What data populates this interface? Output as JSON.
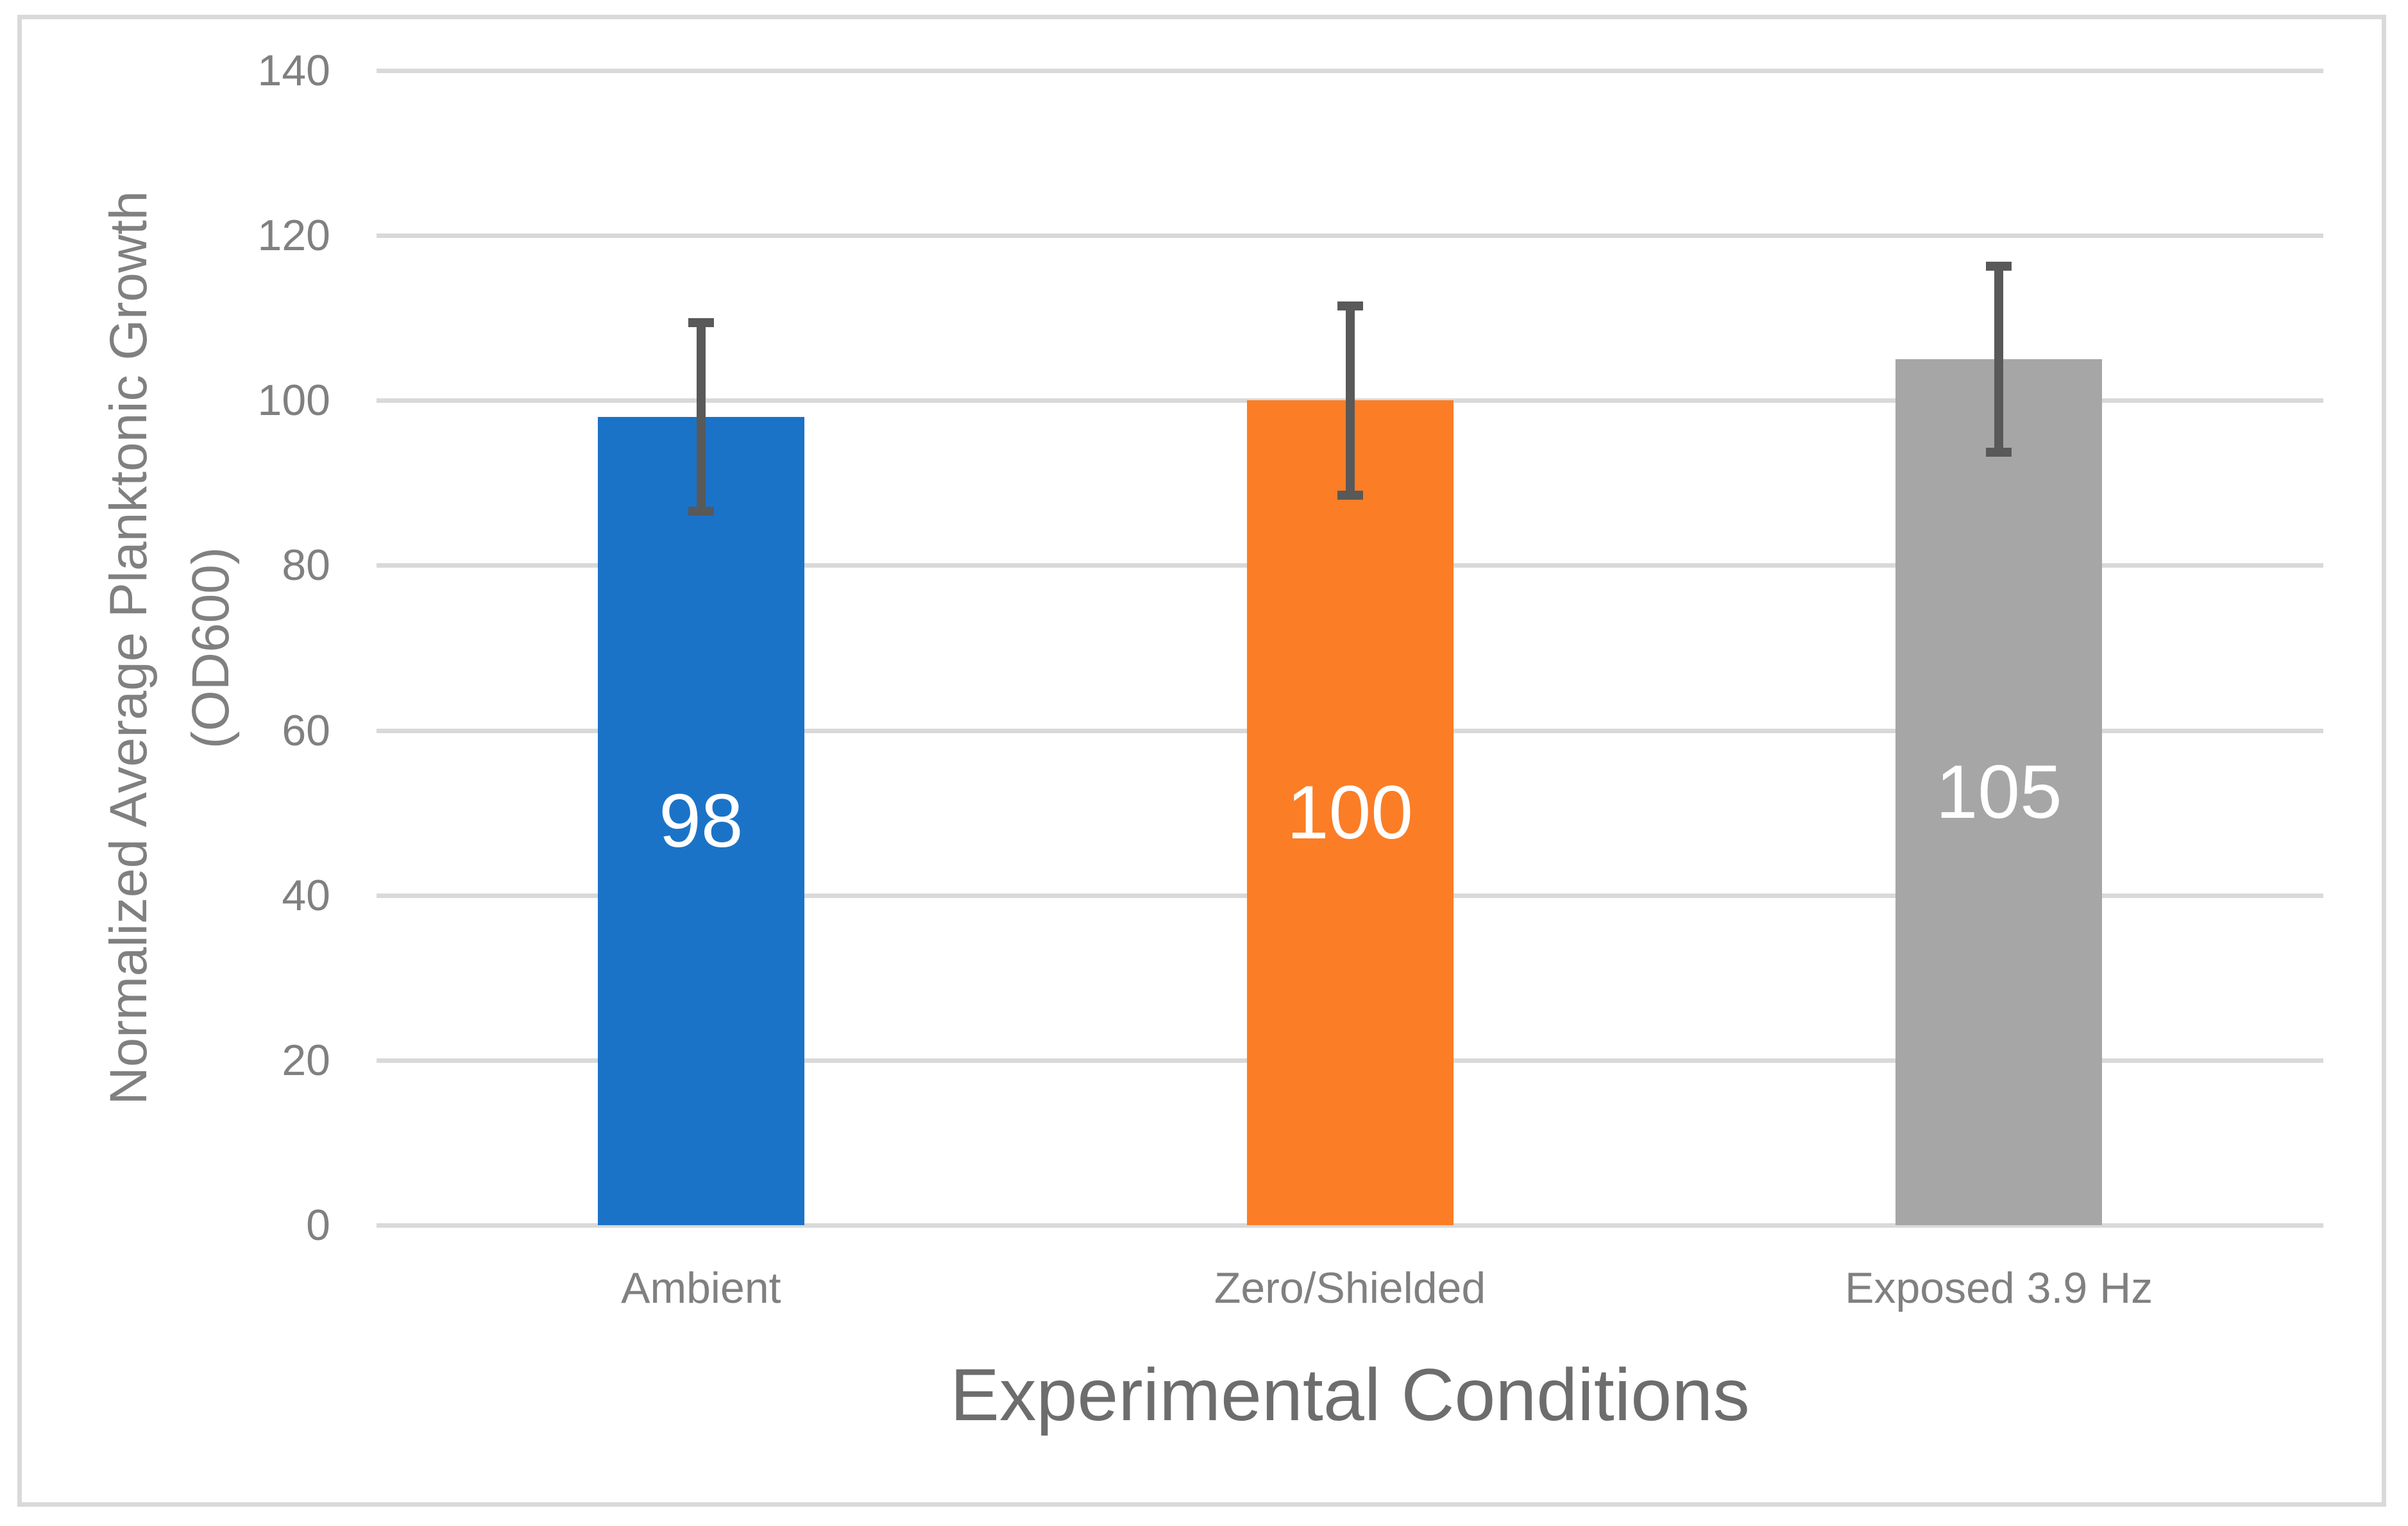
{
  "chart_data": {
    "type": "bar",
    "title": "",
    "categories": [
      "Ambient",
      "Zero/Shielded",
      "Exposed 3.9 Hz"
    ],
    "values": [
      98,
      100,
      105
    ],
    "data_labels": [
      "98",
      "100",
      "105"
    ],
    "error_bars_plus_minus": [
      12,
      12,
      11.8
    ],
    "bar_colors": [
      "#1b73c8",
      "#fb7d26",
      "#a6a6a6"
    ],
    "error_bar_color": "#595959",
    "gridline_color": "#d9d9d9",
    "axis_text_color": "#808080",
    "xlabel": "Experimental Conditions",
    "ylabel": "Normalized Average Planktonic Growth (OD600)",
    "ylabel_lines": [
      "Normalized Average Planktonic Growth",
      "(OD600)"
    ],
    "ylim": [
      0,
      140
    ],
    "ytick_step": 20,
    "ytick_labels": [
      "0",
      "20",
      "40",
      "60",
      "80",
      "100",
      "120",
      "140"
    ],
    "grid": "horizontal gridlines on",
    "legend": "none"
  }
}
